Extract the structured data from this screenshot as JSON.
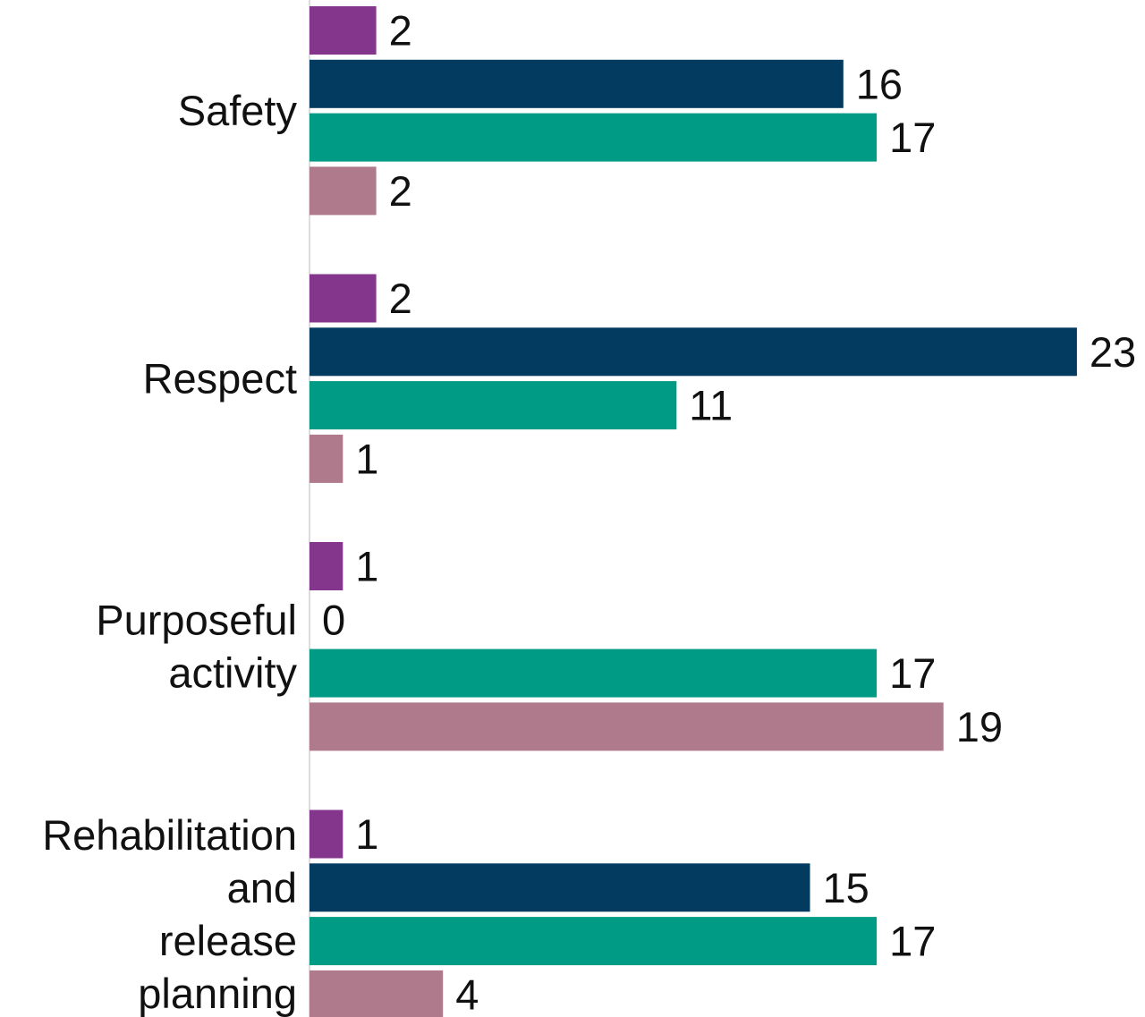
{
  "chart_data": {
    "type": "bar",
    "orientation": "horizontal",
    "categories": [
      [
        "Safety"
      ],
      [
        "Respect"
      ],
      [
        "Purposeful",
        "activity"
      ],
      [
        "Rehabilitation",
        "and",
        "release",
        "planning"
      ]
    ],
    "series": [
      {
        "color": "#84358c",
        "values": [
          2,
          2,
          1,
          1
        ]
      },
      {
        "color": "#033a5f",
        "values": [
          16,
          23,
          0,
          15
        ]
      },
      {
        "color": "#009b85",
        "values": [
          17,
          11,
          17,
          17
        ]
      },
      {
        "color": "#ae7a8c",
        "values": [
          2,
          1,
          19,
          4
        ]
      }
    ],
    "xlim": [
      0,
      23
    ],
    "grid": false,
    "legend": "none"
  }
}
